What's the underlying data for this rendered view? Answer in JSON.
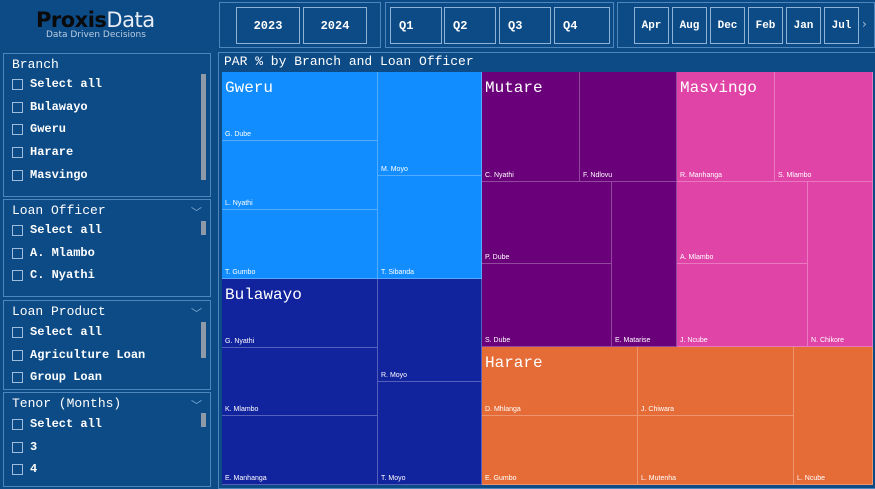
{
  "logo": {
    "brand_part1": "Proxis",
    "brand_part2": "Data",
    "tagline": "Data Driven Decisions"
  },
  "years": [
    "2023",
    "2024"
  ],
  "quarters": [
    "Q1",
    "Q2",
    "Q3",
    "Q4"
  ],
  "months": [
    "Apr",
    "Aug",
    "Dec",
    "Feb",
    "Jan",
    "Jul"
  ],
  "months_scroll_icon": "chevron-right-icon",
  "slicers": {
    "branch": {
      "title": "Branch",
      "items": [
        "Select all",
        "Bulawayo",
        "Gweru",
        "Harare",
        "Masvingo"
      ]
    },
    "loan_officer": {
      "title": "Loan Officer",
      "items": [
        "Select all",
        "A. Mlambo",
        "C. Nyathi"
      ]
    },
    "loan_product": {
      "title": "Loan Product",
      "items": [
        "Select all",
        "Agriculture Loan",
        "Group Loan"
      ]
    },
    "tenor": {
      "title": "Tenor (Months)",
      "items": [
        "Select all",
        "3",
        "4"
      ]
    }
  },
  "treemap": {
    "title": "PAR % by Branch and Loan Officer",
    "colors": {
      "Gweru": "#118dff",
      "Mutare": "#6b007b",
      "Masvingo": "#e044a7",
      "Bulawayo": "#12239e",
      "Harare": "#e66c37"
    },
    "branches": [
      {
        "name": "Gweru",
        "officers": [
          "G. Dube",
          "L. Nyathi",
          "T. Gumbo",
          "M. Moyo",
          "T. Sibanda"
        ]
      },
      {
        "name": "Mutare",
        "officers": [
          "C. Nyathi",
          "F. Ndlovu",
          "P. Dube",
          "S. Dube",
          "E. Matarise"
        ]
      },
      {
        "name": "Masvingo",
        "officers": [
          "R. Manhanga",
          "S. Mlambo",
          "A. Mlambo",
          "J. Ncube",
          "N. Chikore"
        ]
      },
      {
        "name": "Bulawayo",
        "officers": [
          "G. Nyathi",
          "K. Mlambo",
          "E. Manhanga",
          "R. Moyo",
          "T. Moyo"
        ]
      },
      {
        "name": "Harare",
        "officers": [
          "D. Mhlanga",
          "J. Chiwara",
          "E. Gumbo",
          "L. Mutenha",
          "L. Ncube"
        ]
      }
    ]
  }
}
